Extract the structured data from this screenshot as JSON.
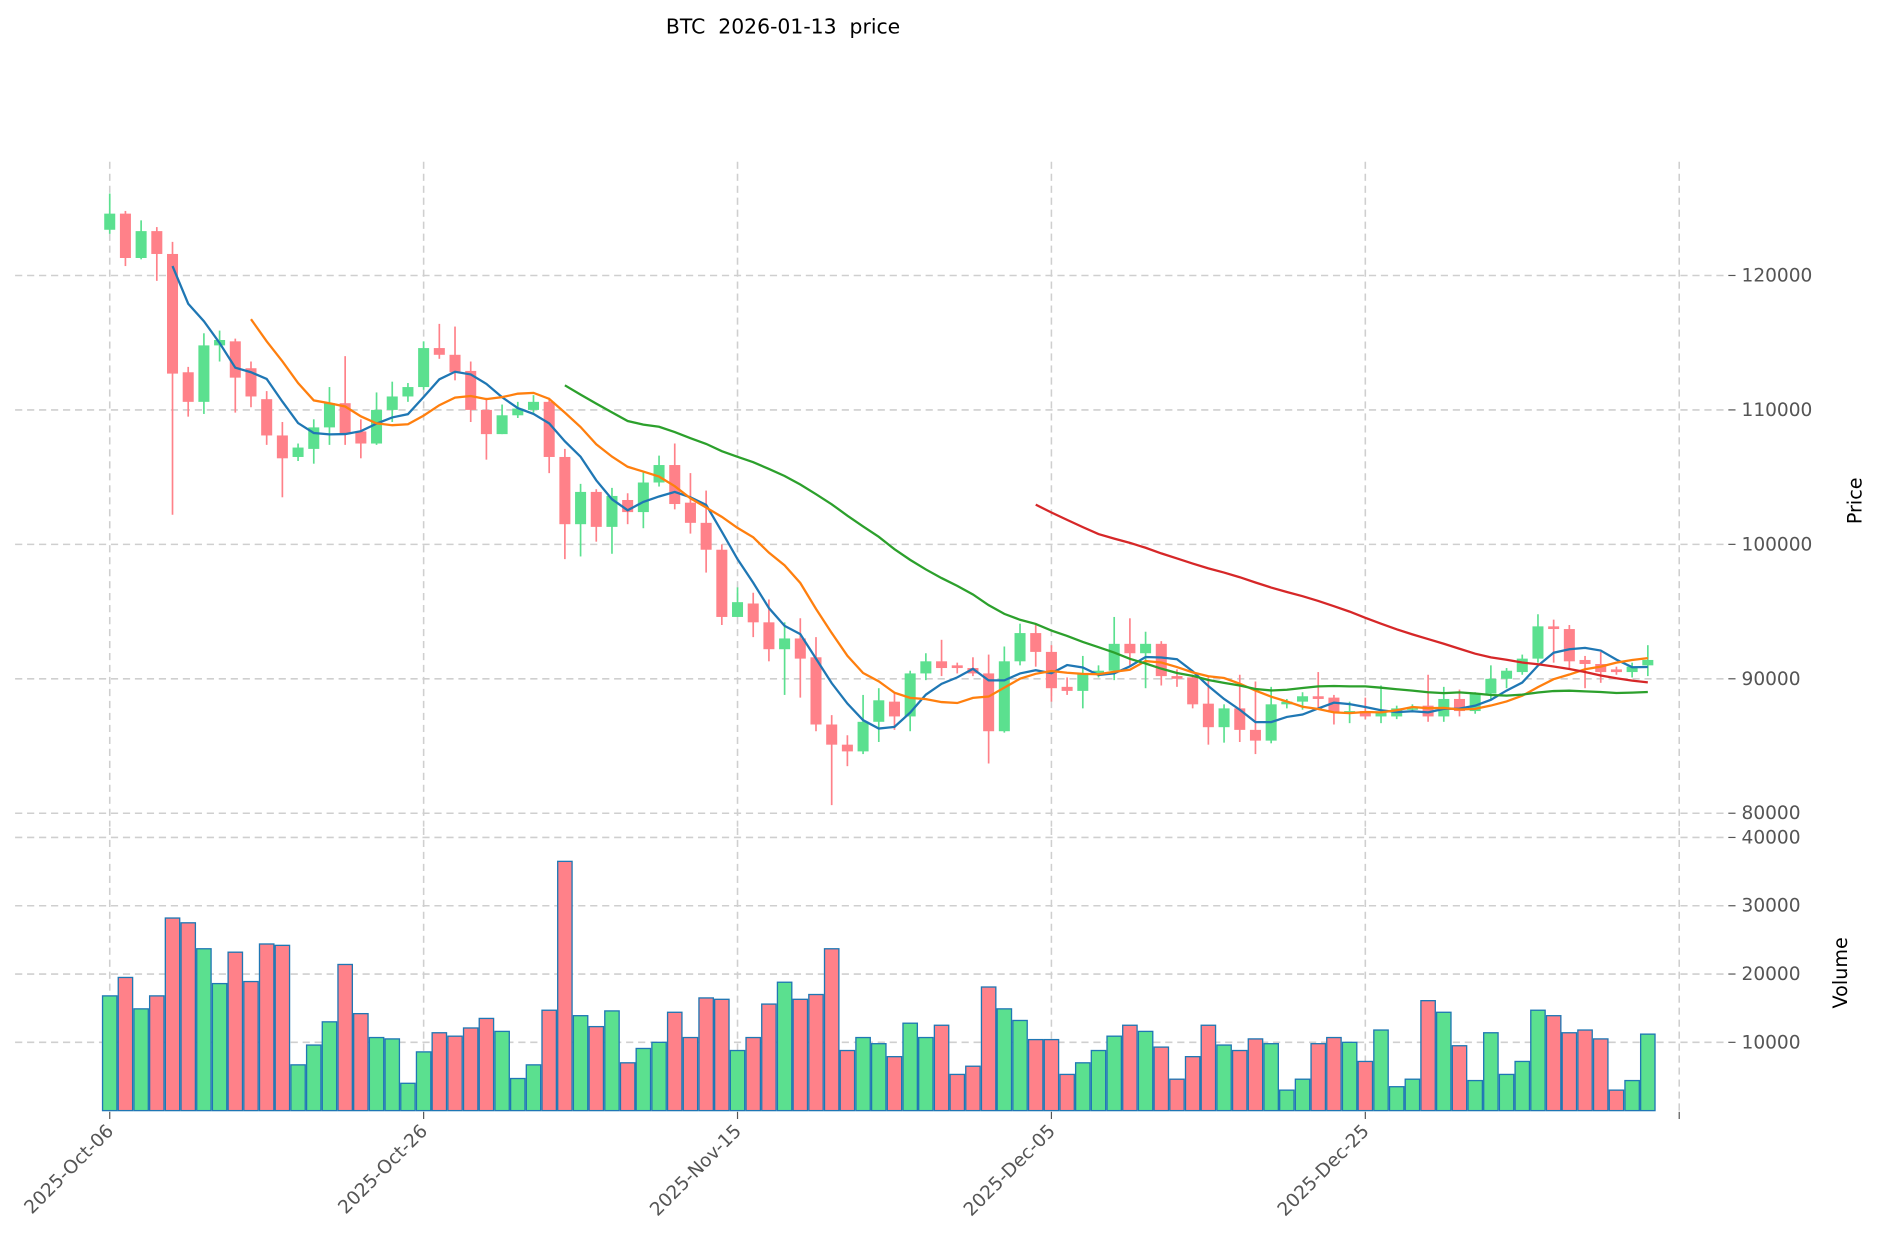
{
  "chart_data": {
    "type": "candlestick",
    "title": "BTC  2026-01-13  price",
    "ylabel_price": "Price",
    "ylabel_volume": "Volume",
    "start_date": "2025-10-06",
    "x_tick_labels": [
      {
        "index": 0,
        "label": "2025-Oct-06"
      },
      {
        "index": 20,
        "label": "2025-Oct-26"
      },
      {
        "index": 40,
        "label": "2025-Nov-15"
      },
      {
        "index": 60,
        "label": "2025-Dec-05"
      },
      {
        "index": 80,
        "label": "2025-Dec-25"
      },
      {
        "index": 100,
        "label": ""
      }
    ],
    "price_ticks": [
      80000,
      90000,
      100000,
      110000,
      120000
    ],
    "volume_ticks": [
      10000,
      20000,
      30000,
      40000
    ],
    "price_ylim": [
      79000,
      128460
    ],
    "volume_ylim": [
      0,
      40000
    ],
    "grid": true,
    "moving_averages": [
      {
        "window": 5,
        "color": "#1f77b4"
      },
      {
        "window": 10,
        "color": "#ff7f0e"
      },
      {
        "window": 30,
        "color": "#2ca02c"
      },
      {
        "window": 60,
        "color": "#d62728"
      }
    ],
    "colors": {
      "up": "#5be08f",
      "down": "#ff8189",
      "volume_edge": "#1f77b4"
    },
    "ohlc": [
      [
        123400,
        126100,
        123100,
        124600
      ],
      [
        124600,
        124800,
        120700,
        121300
      ],
      [
        121300,
        124100,
        121200,
        123300
      ],
      [
        123300,
        123600,
        119600,
        121600
      ],
      [
        121600,
        122500,
        102200,
        112700
      ],
      [
        112800,
        113200,
        109500,
        110600
      ],
      [
        110600,
        115700,
        109700,
        114800
      ],
      [
        114800,
        115900,
        113600,
        115200
      ],
      [
        115100,
        115300,
        109800,
        112400
      ],
      [
        113100,
        113600,
        110200,
        111000
      ],
      [
        110800,
        111400,
        107400,
        108100
      ],
      [
        108100,
        109100,
        103500,
        106400
      ],
      [
        106500,
        107500,
        106200,
        107200
      ],
      [
        107100,
        109300,
        106000,
        108700
      ],
      [
        108700,
        111700,
        107400,
        110500
      ],
      [
        110500,
        114000,
        107400,
        108200
      ],
      [
        108400,
        109300,
        106400,
        107500
      ],
      [
        107500,
        111300,
        107400,
        110000
      ],
      [
        110000,
        112100,
        109100,
        111000
      ],
      [
        111000,
        112000,
        110600,
        111700
      ],
      [
        111700,
        115100,
        111500,
        114600
      ],
      [
        114600,
        116400,
        113800,
        114100
      ],
      [
        114100,
        116200,
        112200,
        112800
      ],
      [
        112900,
        113600,
        109100,
        110000
      ],
      [
        110000,
        110900,
        106300,
        108200
      ],
      [
        108200,
        110400,
        108200,
        109600
      ],
      [
        109600,
        110600,
        109400,
        110100
      ],
      [
        110000,
        111100,
        109800,
        110600
      ],
      [
        110600,
        110900,
        105300,
        106500
      ],
      [
        106500,
        107100,
        98900,
        101500
      ],
      [
        101500,
        104500,
        99100,
        103900
      ],
      [
        103900,
        104100,
        100200,
        101300
      ],
      [
        101300,
        104200,
        99300,
        103600
      ],
      [
        103300,
        103800,
        101500,
        102400
      ],
      [
        102400,
        105400,
        101200,
        104600
      ],
      [
        104600,
        106600,
        104300,
        105900
      ],
      [
        105900,
        107500,
        102600,
        103000
      ],
      [
        103100,
        105300,
        100800,
        101600
      ],
      [
        101600,
        104000,
        97900,
        99600
      ],
      [
        99600,
        100000,
        94000,
        94600
      ],
      [
        94600,
        96800,
        94600,
        95700
      ],
      [
        95600,
        96400,
        93100,
        94200
      ],
      [
        94200,
        95900,
        91300,
        92200
      ],
      [
        92200,
        94200,
        88800,
        93000
      ],
      [
        93000,
        94500,
        88600,
        91500
      ],
      [
        91600,
        93100,
        86100,
        86600
      ],
      [
        86600,
        87300,
        80600,
        85100
      ],
      [
        85100,
        85800,
        83500,
        84600
      ],
      [
        84600,
        88800,
        84400,
        86800
      ],
      [
        86800,
        89300,
        85300,
        88400
      ],
      [
        88300,
        89000,
        86200,
        87200
      ],
      [
        87200,
        90600,
        86100,
        90400
      ],
      [
        90400,
        91900,
        89900,
        91300
      ],
      [
        91300,
        92900,
        90200,
        90800
      ],
      [
        91000,
        91200,
        90400,
        90800
      ],
      [
        90800,
        91600,
        90200,
        90400
      ],
      [
        90400,
        91800,
        83700,
        86100
      ],
      [
        86100,
        92400,
        86000,
        91300
      ],
      [
        91300,
        94100,
        91000,
        93400
      ],
      [
        93400,
        94100,
        90900,
        92000
      ],
      [
        92000,
        92500,
        88300,
        89300
      ],
      [
        89400,
        90100,
        88800,
        89100
      ],
      [
        89100,
        91700,
        87800,
        90400
      ],
      [
        90400,
        91000,
        90100,
        90600
      ],
      [
        90600,
        94600,
        89900,
        92600
      ],
      [
        92600,
        94500,
        91000,
        91900
      ],
      [
        91900,
        93500,
        89300,
        92600
      ],
      [
        92600,
        92800,
        89500,
        90200
      ],
      [
        90200,
        90700,
        89400,
        90000
      ],
      [
        90100,
        90300,
        87800,
        88100
      ],
      [
        88150,
        90100,
        85100,
        86400
      ],
      [
        86400,
        88100,
        85250,
        87800
      ],
      [
        87800,
        90300,
        85300,
        86200
      ],
      [
        86200,
        89800,
        84400,
        85400
      ],
      [
        85400,
        89400,
        85200,
        88100
      ],
      [
        88100,
        88500,
        87800,
        88300
      ],
      [
        88300,
        89000,
        87700,
        88700
      ],
      [
        88700,
        90500,
        87800,
        88500
      ],
      [
        88600,
        88800,
        86600,
        87500
      ],
      [
        87500,
        88300,
        86700,
        87600
      ],
      [
        87600,
        88600,
        87000,
        87200
      ],
      [
        87200,
        89500,
        86700,
        87500
      ],
      [
        87200,
        88000,
        87000,
        87800
      ],
      [
        87700,
        88100,
        87500,
        87800
      ],
      [
        88000,
        90300,
        86800,
        87200
      ],
      [
        87200,
        89400,
        86800,
        88500
      ],
      [
        88500,
        89200,
        87200,
        87600
      ],
      [
        87600,
        89000,
        87400,
        88900
      ],
      [
        88900,
        91000,
        88500,
        90000
      ],
      [
        90000,
        90800,
        89300,
        90600
      ],
      [
        90500,
        91800,
        90300,
        91500
      ],
      [
        91500,
        94800,
        91200,
        93900
      ],
      [
        93900,
        94400,
        91200,
        93700
      ],
      [
        93700,
        94000,
        90800,
        91300
      ],
      [
        91400,
        91700,
        89300,
        91100
      ],
      [
        91100,
        92000,
        89700,
        90500
      ],
      [
        90700,
        90900,
        90300,
        90500
      ],
      [
        90500,
        91200,
        90100,
        90900
      ],
      [
        91000,
        92500,
        90200,
        91400
      ]
    ],
    "volume": [
      16800,
      19500,
      14900,
      16800,
      28200,
      27500,
      23700,
      18600,
      23200,
      18900,
      24400,
      24200,
      6700,
      9600,
      13000,
      21400,
      14200,
      10700,
      10500,
      4000,
      8600,
      11400,
      10900,
      12100,
      13500,
      11600,
      4700,
      6700,
      14700,
      36500,
      13900,
      12300,
      14600,
      7000,
      9100,
      10000,
      14400,
      10700,
      16500,
      16300,
      8800,
      10700,
      15600,
      18800,
      16300,
      17000,
      23700,
      8800,
      10700,
      9800,
      7900,
      12800,
      10700,
      12500,
      5300,
      6500,
      18100,
      14900,
      13200,
      10400,
      10400,
      5300,
      7000,
      8800,
      10900,
      12500,
      11600,
      9300,
      4600,
      7900,
      12500,
      9600,
      8800,
      10500,
      9800,
      3000,
      4600,
      9800,
      10700,
      10000,
      7200,
      11800,
      3500,
      4600,
      16100,
      14400,
      9500,
      4400,
      11400,
      5300,
      7200,
      14700,
      13900,
      11400,
      11800,
      10500,
      3000,
      4400,
      11200
    ]
  }
}
